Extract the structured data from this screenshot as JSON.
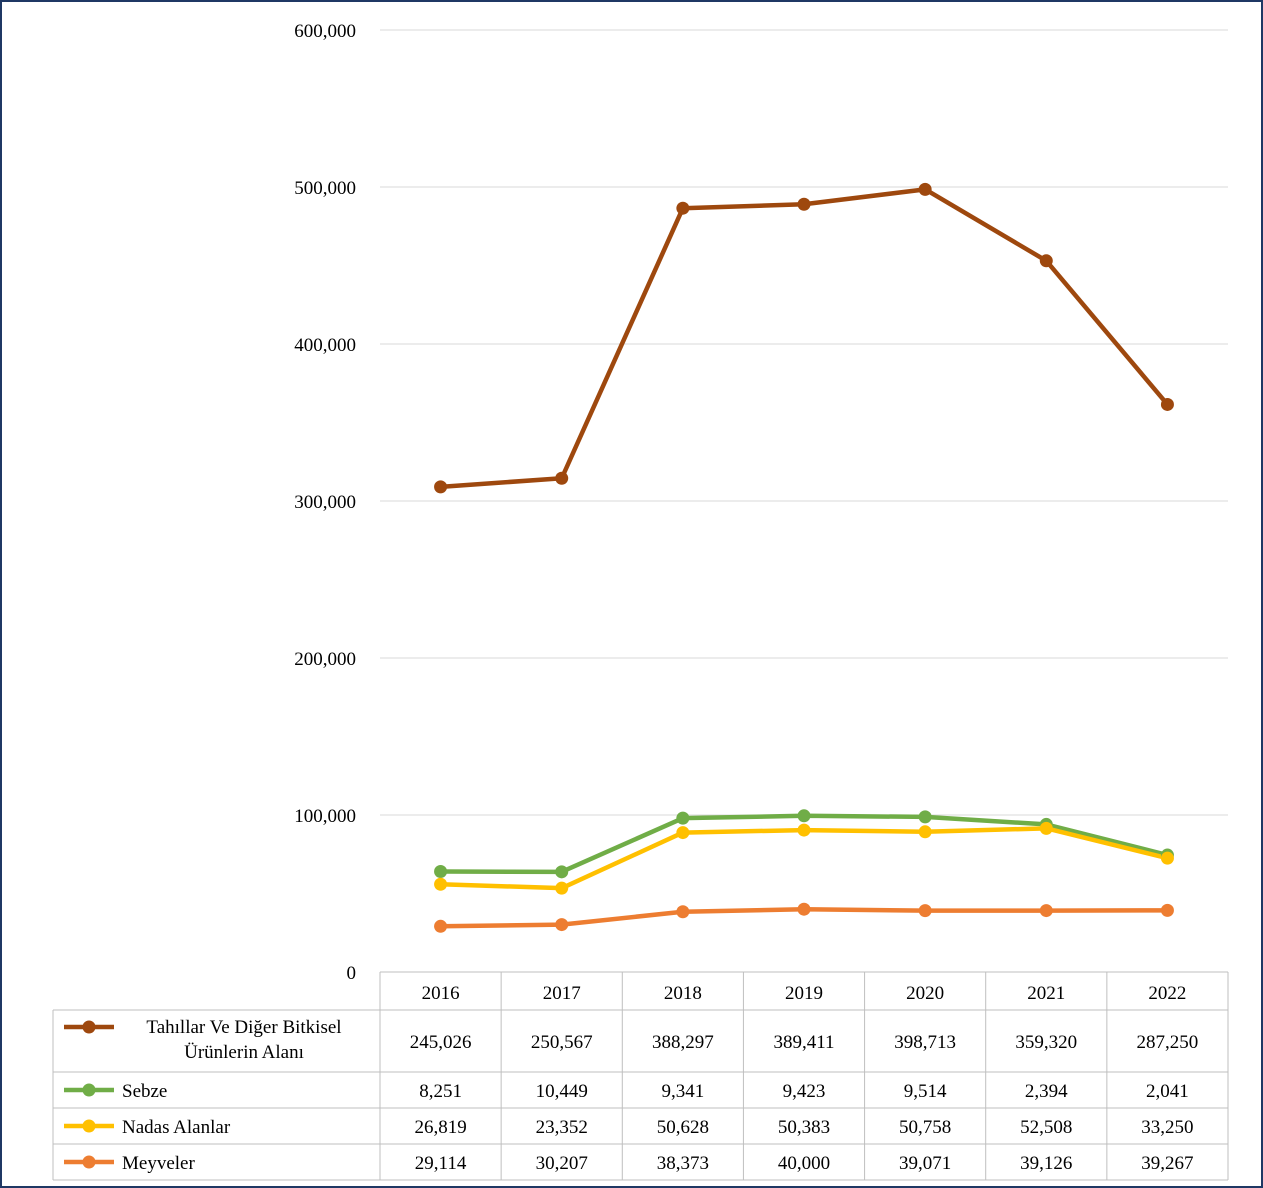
{
  "chart_data": {
    "type": "line",
    "categories": [
      "2016",
      "2017",
      "2018",
      "2019",
      "2020",
      "2021",
      "2022"
    ],
    "y_ticks": [
      "0",
      "100,000",
      "200,000",
      "300,000",
      "400,000",
      "500,000",
      "600,000"
    ],
    "ylim": [
      0,
      600000
    ],
    "grid": true,
    "legend": "data-table",
    "series": [
      {
        "name": "Tahıllar Ve Diğer Bitkisel Ürünlerin Alanı",
        "name_lines": [
          "Tahıllar Ve Diğer Bitkisel",
          "Ürünlerin Alanı"
        ],
        "color": "#9e480e",
        "plot_values": [
          309000,
          314500,
          486500,
          489000,
          498500,
          453000,
          361500
        ],
        "table_values": [
          "245,026",
          "250,567",
          "388,297",
          "389,411",
          "398,713",
          "359,320",
          "287,250"
        ]
      },
      {
        "name": "Sebze",
        "name_lines": [
          "Sebze"
        ],
        "color": "#70ad47",
        "plot_values": [
          64000,
          63800,
          98000,
          99500,
          98800,
          94000,
          74500
        ],
        "table_values": [
          "8,251",
          "10,449",
          "9,341",
          "9,423",
          "9,514",
          "2,394",
          "2,041"
        ]
      },
      {
        "name": "Nadas Alanlar",
        "name_lines": [
          "Nadas Alanlar"
        ],
        "color": "#ffc000",
        "plot_values": [
          55900,
          53400,
          88800,
          90400,
          89300,
          91500,
          72500
        ],
        "table_values": [
          "26,819",
          "23,352",
          "50,628",
          "50,383",
          "50,758",
          "52,508",
          "33,250"
        ]
      },
      {
        "name": "Meyveler",
        "name_lines": [
          "Meyveler"
        ],
        "color": "#ed7d31",
        "plot_values": [
          29114,
          30207,
          38373,
          40000,
          39071,
          39126,
          39267
        ],
        "table_values": [
          "29,114",
          "30,207",
          "38,373",
          "40,000",
          "39,071",
          "39,126",
          "39,267"
        ]
      }
    ]
  }
}
